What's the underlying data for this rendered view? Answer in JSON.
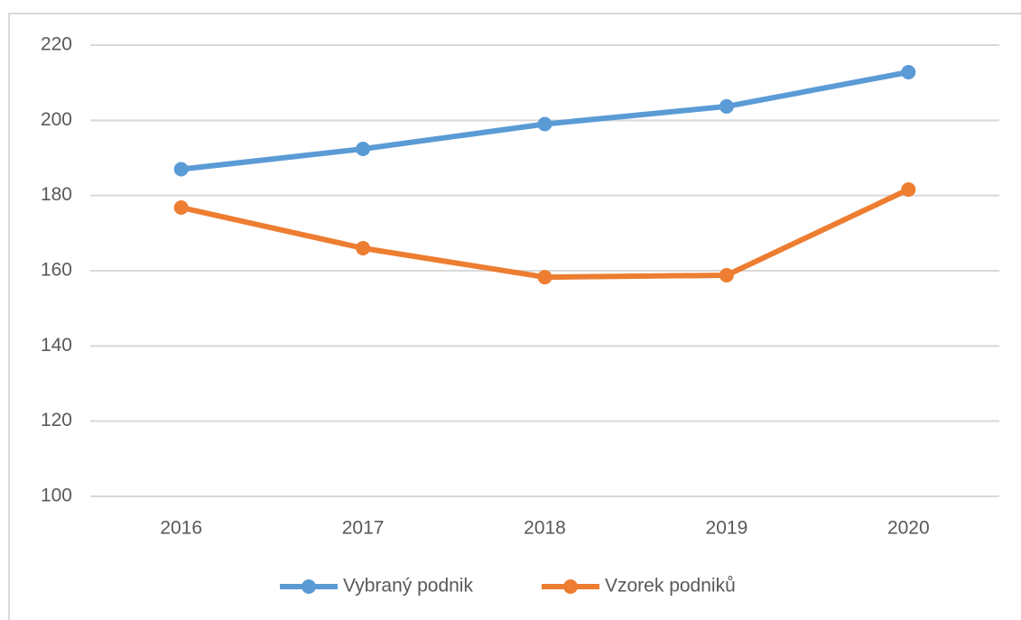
{
  "chart_data": {
    "type": "line",
    "categories": [
      "2016",
      "2017",
      "2018",
      "2019",
      "2020"
    ],
    "series": [
      {
        "name": "Vybraný podnik",
        "color": "#5b9bd5",
        "values": [
          187,
          192.4,
          199,
          203.7,
          212.8
        ]
      },
      {
        "name": "Vzorek podniků",
        "color": "#ed7d31",
        "values": [
          176.8,
          166,
          158.3,
          158.8,
          181.6
        ]
      }
    ],
    "ylim": [
      100,
      220
    ],
    "yticks": [
      100,
      120,
      140,
      160,
      180,
      200,
      220
    ],
    "grid": true,
    "legend": "bottom"
  }
}
